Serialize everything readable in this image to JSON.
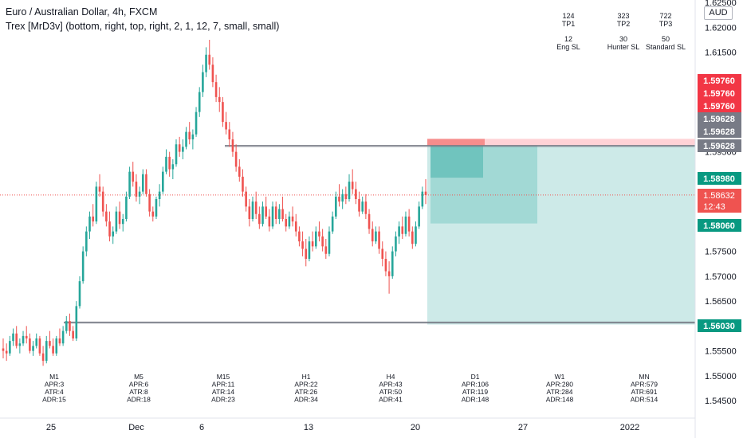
{
  "header": {
    "symbol_line": "Euro / Australian Dollar, 4h, FXCM",
    "indicator_line": "Trex [MrD3v] (bottom, right, top, right, 2, 1, 12, 7, small, small)"
  },
  "currency_badge": "AUD",
  "targets_table": [
    {
      "value": "124",
      "label": "TP1"
    },
    {
      "value": "323",
      "label": "TP2"
    },
    {
      "value": "722",
      "label": "TP3"
    },
    {
      "value": "12",
      "label": "Eng SL"
    },
    {
      "value": "30",
      "label": "Hunter SL"
    },
    {
      "value": "50",
      "label": "Standard SL"
    }
  ],
  "colors": {
    "bull": "#26a69a",
    "bear": "#ef5350",
    "red_tag": "#f23645",
    "gray_tag": "#787b86",
    "green_tag": "#089981",
    "position_zone": "#b2dfdb",
    "position_zone_dark": "#80cbc4",
    "stop_zone": "#ffcdd2"
  },
  "chart_data": {
    "type": "candlestick",
    "symbol": "EURAUD",
    "timeframe": "4h",
    "ylim": [
      1.5415,
      1.6255
    ],
    "y_ticks": [
      "1.62500",
      "1.62000",
      "1.61500",
      "1.61000",
      "1.60500",
      "1.60000",
      "1.59500",
      "1.59000",
      "1.58500",
      "1.58000",
      "1.57500",
      "1.57000",
      "1.56500",
      "1.56000",
      "1.55500",
      "1.55000",
      "1.54500"
    ],
    "x_ticks": [
      "25",
      "Dec",
      "6",
      "13",
      "20",
      "27",
      "2022"
    ],
    "last_price": "1.58632",
    "countdown": "12:43",
    "price_tags": [
      {
        "label": "1.59760",
        "kind": "red"
      },
      {
        "label": "1.59760",
        "kind": "red"
      },
      {
        "label": "1.59760",
        "kind": "red"
      },
      {
        "label": "1.59628",
        "kind": "gray"
      },
      {
        "label": "1.59628",
        "kind": "gray"
      },
      {
        "label": "1.59628",
        "kind": "gray"
      },
      {
        "label": "1.58980",
        "kind": "green"
      },
      {
        "label": "1.58060",
        "kind": "green"
      },
      {
        "label": "1.56030",
        "kind": "green"
      }
    ],
    "levels": {
      "sl_top": 1.5976,
      "sl_line": 1.59628,
      "entry": 1.5963,
      "tp1": 1.5898,
      "tp2": 1.5806,
      "tp3": 1.5603,
      "support": 1.5608
    },
    "timeframe_stats": [
      {
        "tf": "M1",
        "apr": "APR:3",
        "atr": "ATR:4",
        "adr": "ADR:15"
      },
      {
        "tf": "M5",
        "apr": "APR:6",
        "atr": "ATR:8",
        "adr": "ADR:18"
      },
      {
        "tf": "M15",
        "apr": "APR:11",
        "atr": "ATR:14",
        "adr": "ADR:23"
      },
      {
        "tf": "H1",
        "apr": "APR:22",
        "atr": "ATR:26",
        "adr": "ADR:34"
      },
      {
        "tf": "H4",
        "apr": "APR:43",
        "atr": "ATR:50",
        "adr": "ADR:41"
      },
      {
        "tf": "D1",
        "apr": "APR:106",
        "atr": "ATR:119",
        "adr": "ADR:148"
      },
      {
        "tf": "W1",
        "apr": "APR:280",
        "atr": "ATR:284",
        "adr": "ADR:148"
      },
      {
        "tf": "MN",
        "apr": "APR:579",
        "atr": "ATR:691",
        "adr": "ADR:514"
      }
    ],
    "candles": [
      [
        1.5555,
        1.5575,
        1.5535,
        1.555
      ],
      [
        1.555,
        1.5565,
        1.553,
        1.5545
      ],
      [
        1.5545,
        1.558,
        1.554,
        1.557
      ],
      [
        1.557,
        1.5595,
        1.556,
        1.5585
      ],
      [
        1.5585,
        1.56,
        1.5555,
        1.556
      ],
      [
        1.556,
        1.5575,
        1.5545,
        1.5565
      ],
      [
        1.5565,
        1.559,
        1.556,
        1.558
      ],
      [
        1.558,
        1.56,
        1.5565,
        1.5575
      ],
      [
        1.5575,
        1.5585,
        1.5545,
        1.555
      ],
      [
        1.555,
        1.557,
        1.554,
        1.556
      ],
      [
        1.556,
        1.5585,
        1.5555,
        1.5575
      ],
      [
        1.5575,
        1.558,
        1.554,
        1.5545
      ],
      [
        1.5545,
        1.556,
        1.552,
        1.553
      ],
      [
        1.553,
        1.558,
        1.5525,
        1.557
      ],
      [
        1.557,
        1.559,
        1.5555,
        1.556
      ],
      [
        1.556,
        1.5575,
        1.554,
        1.5545
      ],
      [
        1.5545,
        1.558,
        1.554,
        1.5575
      ],
      [
        1.5575,
        1.5595,
        1.556,
        1.5565
      ],
      [
        1.5565,
        1.56,
        1.556,
        1.559
      ],
      [
        1.559,
        1.562,
        1.5585,
        1.561
      ],
      [
        1.561,
        1.5625,
        1.558,
        1.559
      ],
      [
        1.559,
        1.56,
        1.557,
        1.5575
      ],
      [
        1.5575,
        1.565,
        1.557,
        1.564
      ],
      [
        1.564,
        1.57,
        1.5635,
        1.569
      ],
      [
        1.569,
        1.576,
        1.5685,
        1.575
      ],
      [
        1.575,
        1.58,
        1.574,
        1.579
      ],
      [
        1.579,
        1.583,
        1.5775,
        1.582
      ],
      [
        1.582,
        1.5845,
        1.58,
        1.581
      ],
      [
        1.581,
        1.589,
        1.5805,
        1.588
      ],
      [
        1.588,
        1.5905,
        1.586,
        1.587
      ],
      [
        1.587,
        1.588,
        1.582,
        1.583
      ],
      [
        1.583,
        1.5845,
        1.58,
        1.581
      ],
      [
        1.581,
        1.583,
        1.577,
        1.578
      ],
      [
        1.578,
        1.58,
        1.5765,
        1.579
      ],
      [
        1.579,
        1.584,
        1.5785,
        1.583
      ],
      [
        1.583,
        1.585,
        1.5795,
        1.5805
      ],
      [
        1.5805,
        1.5825,
        1.579,
        1.5815
      ],
      [
        1.5815,
        1.587,
        1.581,
        1.586
      ],
      [
        1.586,
        1.592,
        1.5855,
        1.591
      ],
      [
        1.591,
        1.593,
        1.588,
        1.589
      ],
      [
        1.589,
        1.5905,
        1.585,
        1.586
      ],
      [
        1.586,
        1.588,
        1.5845,
        1.587
      ],
      [
        1.587,
        1.5915,
        1.5865,
        1.5905
      ],
      [
        1.5905,
        1.5915,
        1.586,
        1.5865
      ],
      [
        1.5865,
        1.5875,
        1.582,
        1.583
      ],
      [
        1.583,
        1.584,
        1.581,
        1.582
      ],
      [
        1.582,
        1.586,
        1.5815,
        1.5855
      ],
      [
        1.5855,
        1.5885,
        1.584,
        1.587
      ],
      [
        1.587,
        1.592,
        1.5865,
        1.591
      ],
      [
        1.591,
        1.5955,
        1.5905,
        1.594
      ],
      [
        1.594,
        1.595,
        1.59,
        1.5915
      ],
      [
        1.5915,
        1.5935,
        1.5895,
        1.5925
      ],
      [
        1.5925,
        1.5975,
        1.592,
        1.5965
      ],
      [
        1.5965,
        1.598,
        1.594,
        1.595
      ],
      [
        1.595,
        1.5975,
        1.5935,
        1.596
      ],
      [
        1.596,
        1.6,
        1.5955,
        1.599
      ],
      [
        1.599,
        1.601,
        1.5965,
        1.5975
      ],
      [
        1.5975,
        1.5995,
        1.5955,
        1.5985
      ],
      [
        1.5985,
        1.604,
        1.598,
        1.603
      ],
      [
        1.603,
        1.608,
        1.602,
        1.607
      ],
      [
        1.607,
        1.6125,
        1.606,
        1.611
      ],
      [
        1.611,
        1.616,
        1.61,
        1.6145
      ],
      [
        1.6145,
        1.6175,
        1.6115,
        1.6125
      ],
      [
        1.6125,
        1.614,
        1.608,
        1.609
      ],
      [
        1.609,
        1.6105,
        1.605,
        1.606
      ],
      [
        1.606,
        1.608,
        1.603,
        1.605
      ],
      [
        1.605,
        1.606,
        1.6,
        1.601
      ],
      [
        1.601,
        1.603,
        1.5985,
        1.5995
      ],
      [
        1.5995,
        1.601,
        1.596,
        1.5975
      ],
      [
        1.5975,
        1.599,
        1.594,
        1.595
      ],
      [
        1.595,
        1.5965,
        1.591,
        1.592
      ],
      [
        1.592,
        1.5935,
        1.589,
        1.59
      ],
      [
        1.59,
        1.5915,
        1.586,
        1.587
      ],
      [
        1.587,
        1.588,
        1.583,
        1.584
      ],
      [
        1.584,
        1.5855,
        1.58,
        1.5815
      ],
      [
        1.5815,
        1.586,
        1.581,
        1.585
      ],
      [
        1.585,
        1.587,
        1.5815,
        1.5825
      ],
      [
        1.5825,
        1.584,
        1.5795,
        1.5805
      ],
      [
        1.5805,
        1.585,
        1.58,
        1.584
      ],
      [
        1.584,
        1.586,
        1.5815,
        1.582
      ],
      [
        1.582,
        1.5835,
        1.579,
        1.58
      ],
      [
        1.58,
        1.585,
        1.5795,
        1.584
      ],
      [
        1.584,
        1.585,
        1.5805,
        1.5815
      ],
      [
        1.5815,
        1.5845,
        1.5805,
        1.5835
      ],
      [
        1.5835,
        1.586,
        1.581,
        1.5815
      ],
      [
        1.5815,
        1.5825,
        1.579,
        1.58
      ],
      [
        1.58,
        1.583,
        1.5795,
        1.582
      ],
      [
        1.582,
        1.584,
        1.58,
        1.581
      ],
      [
        1.581,
        1.5825,
        1.578,
        1.579
      ],
      [
        1.579,
        1.58,
        1.576,
        1.577
      ],
      [
        1.577,
        1.579,
        1.574,
        1.5755
      ],
      [
        1.5755,
        1.5775,
        1.572,
        1.5735
      ],
      [
        1.5735,
        1.578,
        1.573,
        1.577
      ],
      [
        1.577,
        1.579,
        1.575,
        1.576
      ],
      [
        1.576,
        1.58,
        1.5755,
        1.579
      ],
      [
        1.579,
        1.581,
        1.577,
        1.578
      ],
      [
        1.578,
        1.5795,
        1.575,
        1.576
      ],
      [
        1.576,
        1.5775,
        1.5735,
        1.5745
      ],
      [
        1.5745,
        1.58,
        1.574,
        1.579
      ],
      [
        1.579,
        1.583,
        1.5785,
        1.582
      ],
      [
        1.582,
        1.587,
        1.5815,
        1.586
      ],
      [
        1.586,
        1.5885,
        1.584,
        1.585
      ],
      [
        1.585,
        1.5875,
        1.5835,
        1.5865
      ],
      [
        1.5865,
        1.588,
        1.5845,
        1.5855
      ],
      [
        1.5855,
        1.5905,
        1.585,
        1.589
      ],
      [
        1.589,
        1.5915,
        1.5865,
        1.5875
      ],
      [
        1.5875,
        1.589,
        1.5845,
        1.5855
      ],
      [
        1.5855,
        1.587,
        1.582,
        1.583
      ],
      [
        1.583,
        1.586,
        1.5825,
        1.585
      ],
      [
        1.585,
        1.5865,
        1.5815,
        1.5825
      ],
      [
        1.5825,
        1.5835,
        1.5785,
        1.5795
      ],
      [
        1.5795,
        1.581,
        1.576,
        1.577
      ],
      [
        1.577,
        1.58,
        1.5765,
        1.579
      ],
      [
        1.579,
        1.58,
        1.5745,
        1.5755
      ],
      [
        1.5755,
        1.577,
        1.572,
        1.5735
      ],
      [
        1.5735,
        1.575,
        1.57,
        1.571
      ],
      [
        1.571,
        1.573,
        1.5665,
        1.57
      ],
      [
        1.57,
        1.576,
        1.5695,
        1.575
      ],
      [
        1.575,
        1.579,
        1.574,
        1.578
      ],
      [
        1.578,
        1.581,
        1.5765,
        1.58
      ],
      [
        1.58,
        1.582,
        1.5775,
        1.5785
      ],
      [
        1.5785,
        1.583,
        1.578,
        1.582
      ],
      [
        1.582,
        1.5835,
        1.578,
        1.579
      ],
      [
        1.579,
        1.58,
        1.5755,
        1.5765
      ],
      [
        1.5765,
        1.581,
        1.576,
        1.58
      ],
      [
        1.58,
        1.585,
        1.5795,
        1.584
      ],
      [
        1.584,
        1.588,
        1.5835,
        1.587
      ],
      [
        1.587,
        1.5895,
        1.5845,
        1.5863
      ]
    ]
  }
}
